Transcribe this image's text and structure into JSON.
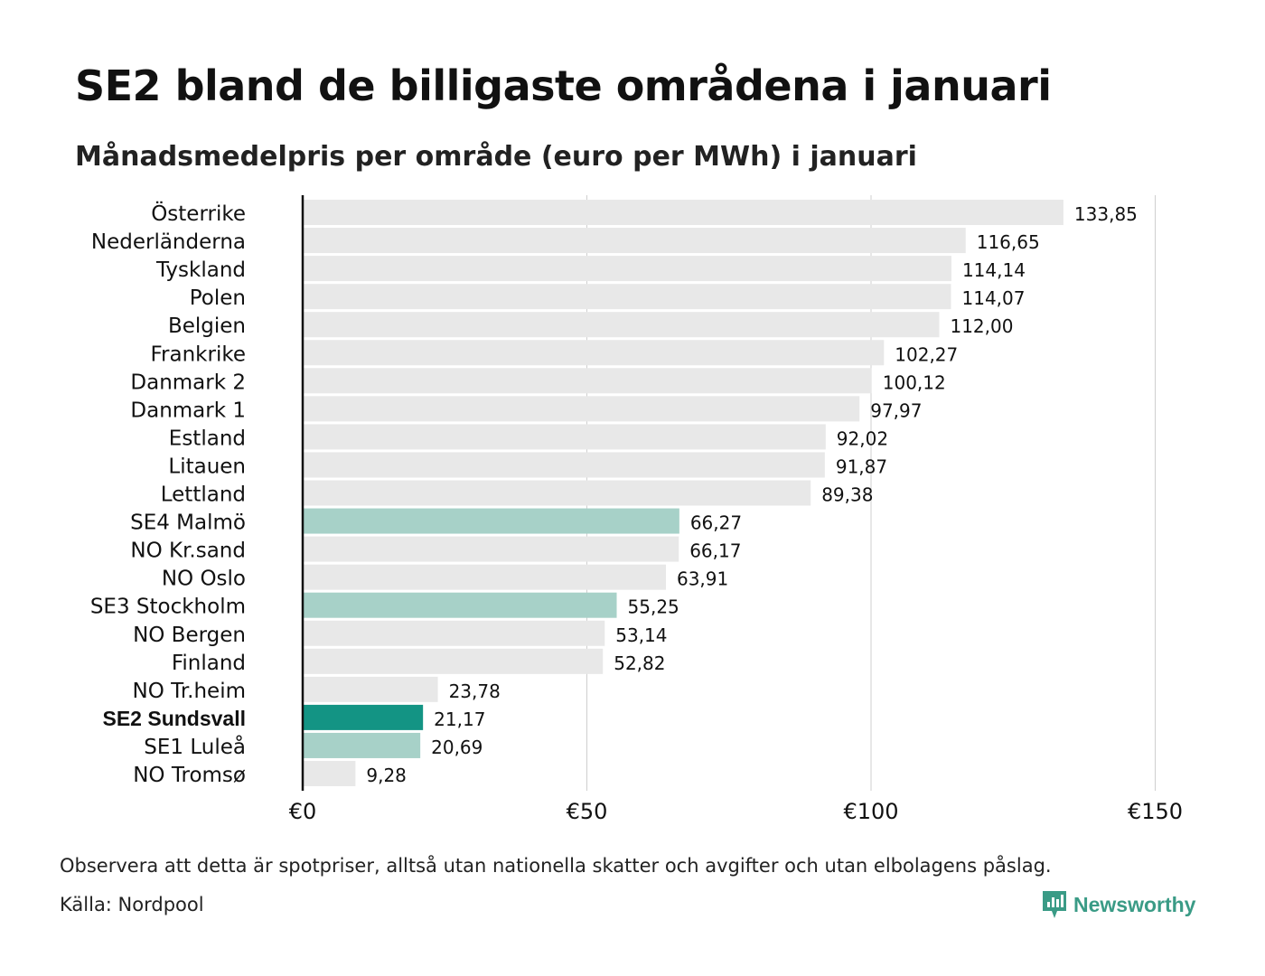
{
  "title": "SE2 bland de billigaste områdena i januari",
  "subtitle": "Månadsmedelpris per område (euro per MWh) i januari",
  "note": "Observera att detta är spotpriser, alltså utan nationella skatter och avgifter och utan elbolagens påslag.",
  "source": "Källa: Nordpool",
  "brand": {
    "name": "Newsworthy",
    "icon": "newsworthy-logo-icon",
    "color": "#3a9b86"
  },
  "colors": {
    "default_bar": "#e8e8e8",
    "se_bar": "#a7d1c8",
    "highlight_bar": "#139484",
    "grid": "#cfcfcf",
    "axis": "#111111"
  },
  "chart_data": {
    "type": "bar",
    "orientation": "horizontal",
    "xlim": [
      0,
      150
    ],
    "x_ticks": [
      0,
      50,
      100,
      150
    ],
    "x_tick_labels": [
      "€0",
      "€50",
      "€100",
      "€150"
    ],
    "grid": true,
    "categories": [
      "Österrike",
      "Nederländerna",
      "Tyskland",
      "Polen",
      "Belgien",
      "Frankrike",
      "Danmark 2",
      "Danmark 1",
      "Estland",
      "Litauen",
      "Lettland",
      "SE4 Malmö",
      "NO Kr.sand",
      "NO Oslo",
      "SE3 Stockholm",
      "NO Bergen",
      "Finland",
      "NO Tr.heim",
      "SE2 Sundsvall",
      "SE1 Luleå",
      "NO Tromsø"
    ],
    "values": [
      133.85,
      116.65,
      114.14,
      114.07,
      112.0,
      102.27,
      100.12,
      97.97,
      92.02,
      91.87,
      89.38,
      66.27,
      66.17,
      63.91,
      55.25,
      53.14,
      52.82,
      23.78,
      21.17,
      20.69,
      9.28
    ],
    "value_labels": [
      "133,85",
      "116,65",
      "114,14",
      "114,07",
      "112,00",
      "102,27",
      "100,12",
      "97,97",
      "92,02",
      "91,87",
      "89,38",
      "66,27",
      "66,17",
      "63,91",
      "55,25",
      "53,14",
      "52,82",
      "23,78",
      "21,17",
      "20,69",
      "9,28"
    ],
    "groups": [
      "other",
      "other",
      "other",
      "other",
      "other",
      "other",
      "other",
      "other",
      "other",
      "other",
      "other",
      "se",
      "other",
      "other",
      "se",
      "other",
      "other",
      "other",
      "highlight",
      "se",
      "other"
    ]
  }
}
